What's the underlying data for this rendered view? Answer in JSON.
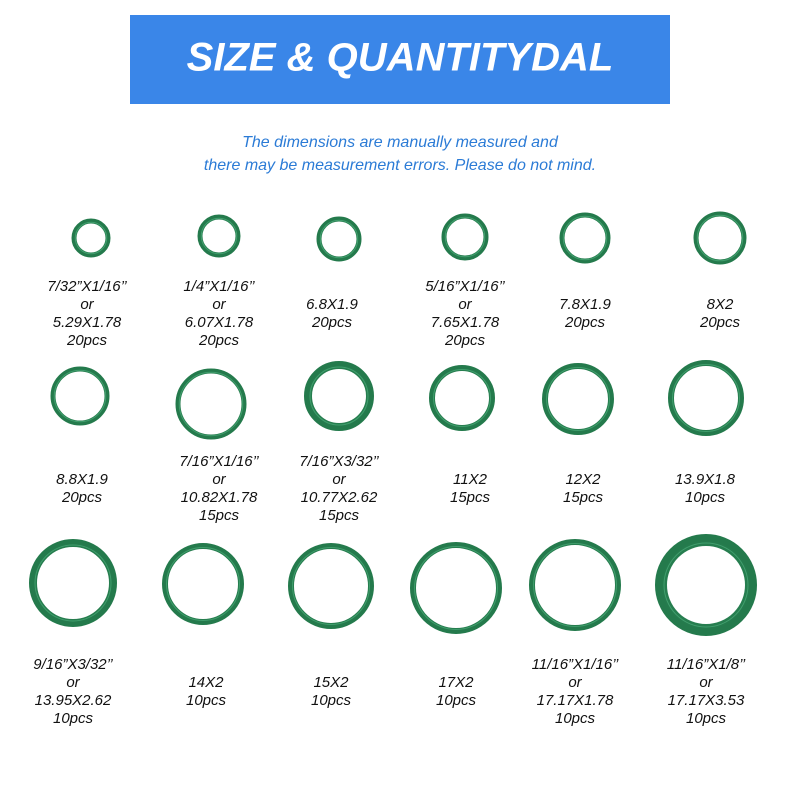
{
  "header": {
    "title": "SIZE & QUANTITYDAL"
  },
  "note": {
    "lines": [
      "The dimensions are manually measured and",
      "there may be measurement errors. Please do not mind."
    ]
  },
  "items": [
    {
      "lines": [
        "7/32”X1/16’’",
        "or",
        "5.29X1.78",
        "20pcs"
      ]
    },
    {
      "lines": [
        "1/4”X1/16’’",
        "or",
        "6.07X1.78",
        "20pcs"
      ]
    },
    {
      "lines": [
        "6.8X1.9",
        "20pcs"
      ]
    },
    {
      "lines": [
        "5/16”X1/16’’",
        "or",
        "7.65X1.78",
        "20pcs"
      ]
    },
    {
      "lines": [
        "7.8X1.9",
        "20pcs"
      ]
    },
    {
      "lines": [
        "8X2",
        "20pcs"
      ]
    },
    {
      "lines": [
        "8.8X1.9",
        "20pcs"
      ]
    },
    {
      "lines": [
        "7/16”X1/16’’",
        "or",
        "10.82X1.78",
        "15pcs"
      ]
    },
    {
      "lines": [
        "7/16”X3/32’’",
        "or",
        "10.77X2.62",
        "15pcs"
      ]
    },
    {
      "lines": [
        "11X2",
        "15pcs"
      ]
    },
    {
      "lines": [
        "12X2",
        "15pcs"
      ]
    },
    {
      "lines": [
        "13.9X1.8",
        "10pcs"
      ]
    },
    {
      "lines": [
        "9/16”X3/32’’",
        "or",
        "13.95X2.62",
        "10pcs"
      ]
    },
    {
      "lines": [
        "14X2",
        "10pcs"
      ]
    },
    {
      "lines": [
        "15X2",
        "10pcs"
      ]
    },
    {
      "lines": [
        "17X2",
        "10pcs"
      ]
    },
    {
      "lines": [
        "11/16”X1/16’’",
        "or",
        "17.17X1.78",
        "10pcs"
      ]
    },
    {
      "lines": [
        "11/16”X1/8’’",
        "or",
        "17.17X3.53",
        "10pcs"
      ]
    }
  ]
}
